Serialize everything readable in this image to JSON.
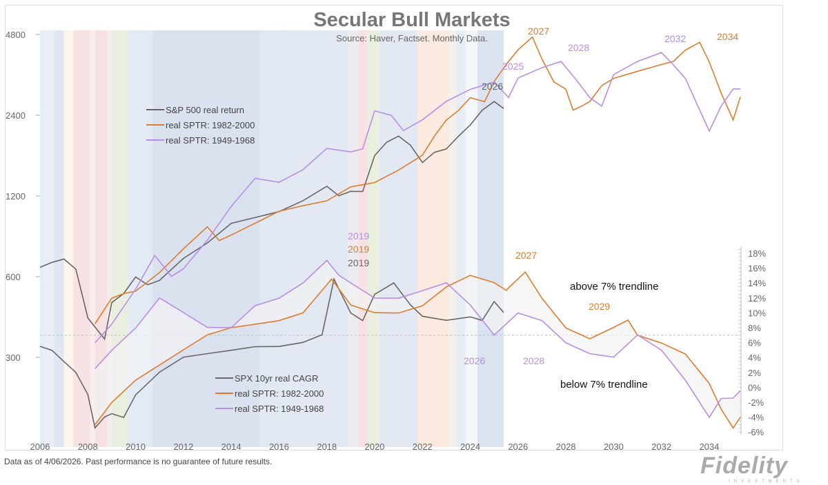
{
  "chart_data": [
    {
      "type": "line",
      "title": "Secular Bull Markets",
      "subtitle": "Source: Haver, Factset.  Monthly Data.",
      "yscale": "log",
      "yticks": [
        300,
        600,
        1200,
        2400,
        4800
      ],
      "ylim": [
        150,
        5200
      ],
      "xlim": [
        2006,
        2035.6
      ],
      "xticks": [
        2006,
        2008,
        2010,
        2012,
        2014,
        2016,
        2018,
        2020,
        2022,
        2024,
        2026,
        2028,
        2030,
        2032,
        2034
      ],
      "series": [
        {
          "name": "S&P 500 real return",
          "color": "#666666",
          "x": [
            2006,
            2006.5,
            2007,
            2007.5,
            2008,
            2008.7,
            2009,
            2009.5,
            2010,
            2010.5,
            2011,
            2012,
            2013,
            2014,
            2015,
            2016,
            2017,
            2018,
            2018.5,
            2019,
            2019.5,
            2020,
            2020.5,
            2021,
            2021.5,
            2022,
            2022.5,
            2023,
            2023.5,
            2024,
            2024.5,
            2025,
            2025.4
          ],
          "y": [
            650,
            680,
            700,
            640,
            420,
            350,
            480,
            520,
            600,
            560,
            580,
            700,
            800,
            950,
            1000,
            1050,
            1150,
            1300,
            1200,
            1250,
            1250,
            1700,
            1900,
            2000,
            1850,
            1600,
            1750,
            1800,
            2000,
            2200,
            2500,
            2700,
            2550
          ]
        },
        {
          "name": "real SPTR: 1982-2000",
          "color": "#e07b2c",
          "x": [
            2008.3,
            2009,
            2009.5,
            2010,
            2011,
            2012,
            2013,
            2013.5,
            2014,
            2015,
            2016,
            2017,
            2018,
            2019,
            2020,
            2021,
            2022,
            2022.5,
            2023,
            2023.5,
            2024,
            2024.6,
            2025,
            2025.5,
            2026,
            2026.6,
            2027,
            2027.5,
            2028,
            2028.3,
            2028.7,
            2029,
            2029.5,
            2030,
            2031,
            2032,
            2032.5,
            2033,
            2033.6,
            2034,
            2034.5,
            2035,
            2035.3
          ],
          "y": [
            400,
            500,
            520,
            530,
            620,
            760,
            920,
            820,
            860,
            950,
            1050,
            1100,
            1150,
            1300,
            1350,
            1500,
            1700,
            2000,
            2300,
            2500,
            2800,
            2700,
            3200,
            3700,
            4200,
            4700,
            3900,
            3200,
            3000,
            2500,
            2600,
            2700,
            3100,
            3300,
            3500,
            3700,
            3800,
            4200,
            4500,
            3800,
            2900,
            2300,
            2800
          ]
        },
        {
          "name": "real SPTR: 1949-1968",
          "color": "#b98ce8",
          "x": [
            2008.3,
            2009,
            2010,
            2010.8,
            2011.5,
            2012,
            2013,
            2014,
            2015,
            2016,
            2017,
            2018,
            2019,
            2019.5,
            2020,
            2020.7,
            2021.2,
            2022,
            2023,
            2024,
            2025,
            2025.6,
            2026,
            2027,
            2027.8,
            2028.5,
            2029,
            2029.5,
            2030,
            2031,
            2032,
            2032.5,
            2033,
            2034,
            2034.5,
            2035,
            2035.3
          ],
          "y": [
            340,
            400,
            540,
            720,
            600,
            640,
            820,
            1100,
            1400,
            1350,
            1500,
            1800,
            1750,
            1800,
            2500,
            2400,
            2100,
            2300,
            2700,
            3000,
            3200,
            2800,
            3300,
            3600,
            3800,
            3200,
            2800,
            2600,
            3400,
            3800,
            4100,
            3700,
            3300,
            2100,
            2600,
            3000,
            3000
          ]
        }
      ],
      "annotations": [
        {
          "text": "2027",
          "color": "#e07b2c"
        },
        {
          "text": "2028",
          "color": "#b98ce8"
        },
        {
          "text": "2032",
          "color": "#b98ce8"
        },
        {
          "text": "2034",
          "color": "#e07b2c"
        },
        {
          "text": "2025",
          "color": "#b98ce8"
        },
        {
          "text": "2026",
          "color": "#666666"
        }
      ]
    },
    {
      "type": "line",
      "ylabel_side": "right",
      "yticks": [
        -6,
        -4,
        -2,
        0,
        2,
        4,
        6,
        8,
        10,
        12,
        14,
        16,
        18
      ],
      "ytick_suffix": "%",
      "ylim": [
        -6.5,
        19
      ],
      "trendline": 7,
      "series": [
        {
          "name": "SPX 10yr real CAGR",
          "color": "#666666",
          "x": [
            2006,
            2006.5,
            2007,
            2007.5,
            2008,
            2008.3,
            2008.7,
            2009,
            2009.5,
            2010,
            2011,
            2012,
            2013,
            2014,
            2015,
            2016,
            2017,
            2017.8,
            2018.3,
            2019,
            2019.5,
            2020,
            2020.8,
            2021.5,
            2022,
            2023,
            2024,
            2024.5,
            2025,
            2025.4
          ],
          "y": [
            5.5,
            5,
            3.5,
            2,
            -1,
            -5.5,
            -4,
            -3.5,
            -4,
            -1,
            2,
            4,
            4.5,
            5,
            5.5,
            5.5,
            6,
            7,
            14.5,
            10,
            9,
            12.5,
            14,
            11,
            9.5,
            9,
            9.5,
            9,
            11.5,
            10
          ]
        },
        {
          "name": "real SPTR: 1982-2000",
          "color": "#e07b2c",
          "x": [
            2008.3,
            2009,
            2010,
            2011,
            2012,
            2013,
            2014,
            2015,
            2016,
            2017,
            2018.2,
            2019,
            2020,
            2021,
            2022,
            2023,
            2024,
            2025,
            2025.5,
            2026.3,
            2027,
            2028,
            2029,
            2030,
            2030.6,
            2031,
            2032,
            2033,
            2034,
            2034.5,
            2035,
            2035.3
          ],
          "y": [
            -5,
            -2,
            1,
            3,
            5,
            7,
            8,
            8.5,
            9,
            10,
            14.5,
            11,
            10,
            10,
            11,
            13.5,
            15,
            14,
            13,
            15.5,
            12,
            8,
            6.5,
            8,
            9,
            7,
            6,
            4.5,
            0.5,
            -3,
            -5.5,
            -4
          ]
        },
        {
          "name": "real SPTR: 1949-1968",
          "color": "#b98ce8",
          "x": [
            2008.3,
            2009,
            2010,
            2011,
            2012,
            2013,
            2014,
            2015,
            2016,
            2017,
            2018,
            2018.5,
            2019,
            2020,
            2021,
            2022,
            2023,
            2024,
            2025,
            2026,
            2027,
            2028,
            2029,
            2030,
            2031,
            2032,
            2033,
            2034,
            2034.5,
            2035,
            2035.3
          ],
          "y": [
            2.5,
            5,
            8,
            12,
            10,
            8,
            8,
            11,
            12,
            14,
            17,
            15,
            14,
            12,
            12,
            13,
            14,
            11,
            7,
            10,
            9,
            6,
            4.5,
            4,
            7,
            5,
            1,
            -4,
            -1.5,
            -1.5,
            -0.5
          ]
        }
      ],
      "annotations": [
        {
          "text": "2019",
          "color": "#b98ce8"
        },
        {
          "text": "2019",
          "color": "#e07b2c"
        },
        {
          "text": "2019",
          "color": "#666666"
        },
        {
          "text": "2027",
          "color": "#e07b2c"
        },
        {
          "text": "2029",
          "color": "#e07b2c"
        },
        {
          "text": "2026",
          "color": "#b98ce8"
        },
        {
          "text": "2028",
          "color": "#b98ce8"
        }
      ],
      "labels": {
        "above": "above 7% trendline",
        "below": "below 7% trendline"
      }
    }
  ],
  "footer": "Data as of 4/06/2026. Past performance is no guarantee of future results.",
  "logo": {
    "text": "Fidelity",
    "sub": "INVESTMENTS"
  }
}
